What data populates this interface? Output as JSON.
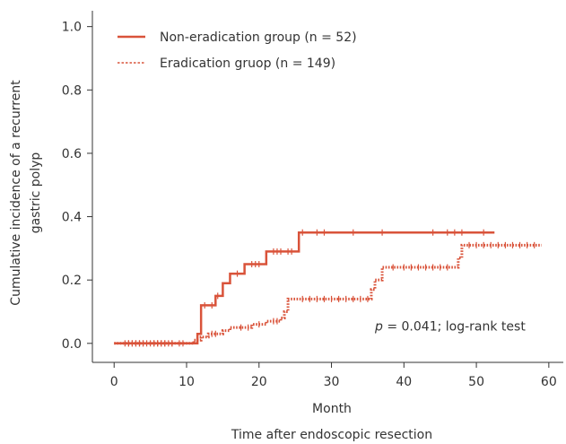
{
  "chart_data": {
    "type": "line",
    "subtype": "kaplan-meier-step",
    "title": "",
    "xlabel": "Month",
    "xlabel_secondary": "Time after endoscopic resection",
    "ylabel_lines": [
      "Cumulative incidence of a recurrent",
      "gastric polyp"
    ],
    "xlim": [
      -3,
      62
    ],
    "ylim": [
      -0.06,
      1.05
    ],
    "x_ticks": [
      0,
      10,
      20,
      30,
      40,
      50,
      60
    ],
    "y_ticks": [
      0.0,
      0.2,
      0.4,
      0.6,
      0.8,
      1.0
    ],
    "y_tick_labels": [
      "0.0",
      "0.2",
      "0.4",
      "0.6",
      "0.8",
      "1.0"
    ],
    "grid": false,
    "legend_position": "top-left",
    "annotation": {
      "p_label": "p",
      "rest": " = 0.041; log-rank test",
      "x": 36,
      "y": 0.04
    },
    "series": [
      {
        "name": "Non-eradication group (n = 52)",
        "color": "#d9533a",
        "line_style": "solid",
        "steps": [
          [
            0,
            0.0
          ],
          [
            11.5,
            0.03
          ],
          [
            12,
            0.12
          ],
          [
            14,
            0.15
          ],
          [
            15,
            0.19
          ],
          [
            16,
            0.22
          ],
          [
            18,
            0.25
          ],
          [
            21,
            0.29
          ],
          [
            25.5,
            0.35
          ],
          [
            52.5,
            0.35
          ]
        ],
        "censored": [
          2,
          2.5,
          3,
          3.5,
          4,
          5.5,
          6,
          6.5,
          7,
          8,
          12.5,
          13.5,
          14.3,
          17,
          19,
          19.5,
          20,
          22,
          22.5,
          23,
          24,
          24.5,
          26,
          28,
          29,
          33,
          37,
          44,
          46,
          47,
          48,
          51
        ]
      },
      {
        "name": "Eradication gruop (n = 149)",
        "color": "#d9533a",
        "line_style": "dotted",
        "steps": [
          [
            0,
            0.0
          ],
          [
            11,
            0.01
          ],
          [
            12,
            0.02
          ],
          [
            13,
            0.03
          ],
          [
            15,
            0.04
          ],
          [
            16,
            0.05
          ],
          [
            19,
            0.06
          ],
          [
            21,
            0.07
          ],
          [
            23,
            0.08
          ],
          [
            23.5,
            0.1
          ],
          [
            24,
            0.14
          ],
          [
            35.5,
            0.17
          ],
          [
            36,
            0.2
          ],
          [
            37,
            0.24
          ],
          [
            47.5,
            0.27
          ],
          [
            48,
            0.31
          ],
          [
            59,
            0.31
          ]
        ],
        "censored": [
          1.5,
          2,
          2.5,
          3,
          3.5,
          4,
          4.5,
          5,
          5.5,
          6,
          6.5,
          7,
          7.5,
          8,
          9,
          9.5,
          13.5,
          14,
          17.5,
          18.5,
          20,
          22,
          22.5,
          26,
          27,
          28,
          29,
          30,
          31,
          32,
          33,
          34,
          35,
          38.5,
          40,
          41,
          42,
          43,
          44,
          45,
          46,
          49,
          50,
          51,
          52,
          53,
          54,
          55,
          56,
          57,
          58
        ]
      }
    ]
  }
}
